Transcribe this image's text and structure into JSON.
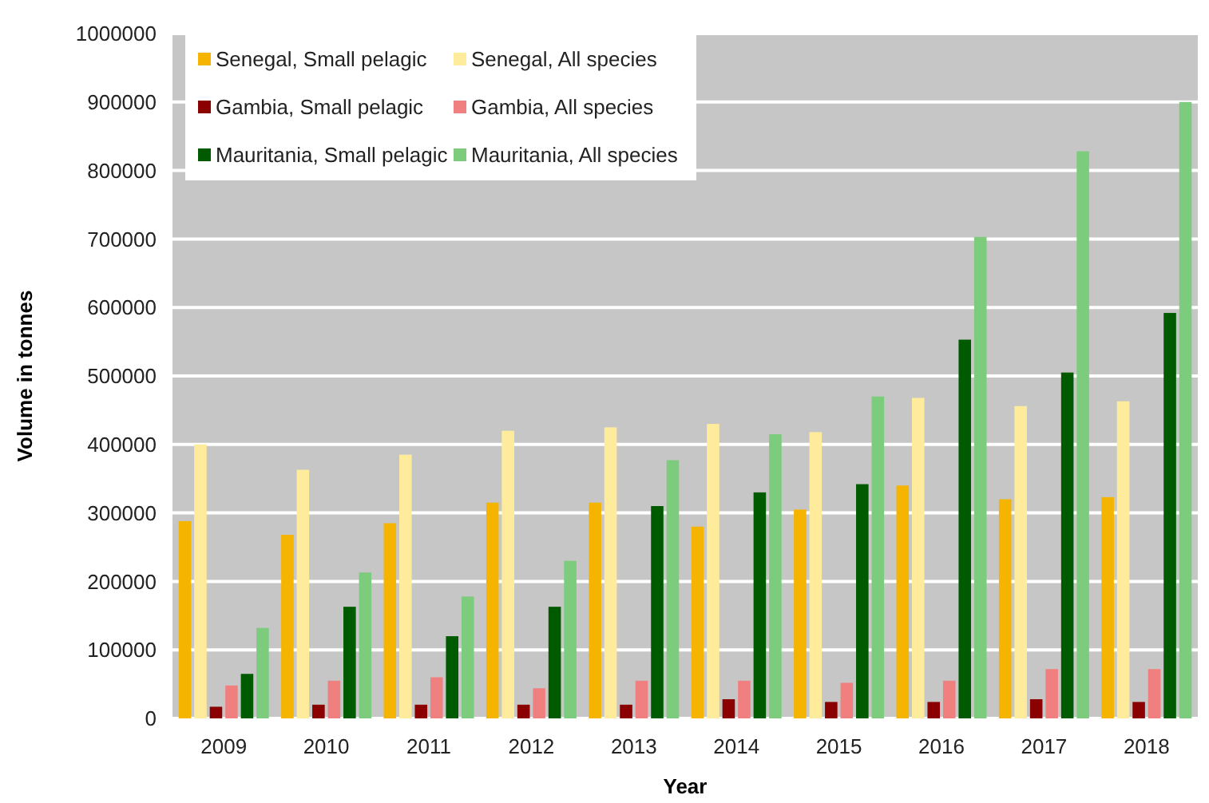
{
  "chart_data": {
    "type": "bar",
    "xlabel": "Year",
    "ylabel": "Volume in tonnes",
    "categories": [
      "2009",
      "2010",
      "2011",
      "2012",
      "2013",
      "2014",
      "2015",
      "2016",
      "2017",
      "2018"
    ],
    "series": [
      {
        "name": "Senegal, Small pelagic",
        "color": "#f5b400",
        "values": [
          288000,
          268000,
          285000,
          315000,
          315000,
          280000,
          305000,
          340000,
          320000,
          323000
        ]
      },
      {
        "name": "Senegal, All species",
        "color": "#ffeb9c",
        "values": [
          400000,
          363000,
          385000,
          420000,
          425000,
          430000,
          418000,
          468000,
          456000,
          463000
        ]
      },
      {
        "name": "Gambia, Small pelagic",
        "color": "#8b0000",
        "values": [
          17000,
          20000,
          20000,
          20000,
          20000,
          28000,
          24000,
          24000,
          28000,
          24000
        ]
      },
      {
        "name": "Gambia, All species",
        "color": "#f08080",
        "values": [
          48000,
          55000,
          60000,
          44000,
          55000,
          55000,
          52000,
          55000,
          72000,
          72000
        ]
      },
      {
        "name": "Mauritania, Small pelagic",
        "color": "#005a00",
        "values": [
          65000,
          163000,
          120000,
          163000,
          310000,
          330000,
          342000,
          553000,
          505000,
          592000
        ]
      },
      {
        "name": "Mauritania, All species",
        "color": "#7dcc7d",
        "values": [
          132000,
          213000,
          178000,
          230000,
          377000,
          415000,
          470000,
          703000,
          828000,
          900000
        ]
      }
    ],
    "ylim": [
      0,
      1000000
    ],
    "yticks": [
      0,
      100000,
      200000,
      300000,
      400000,
      500000,
      600000,
      700000,
      800000,
      900000,
      1000000
    ],
    "grid": "y",
    "legend": "top left"
  }
}
